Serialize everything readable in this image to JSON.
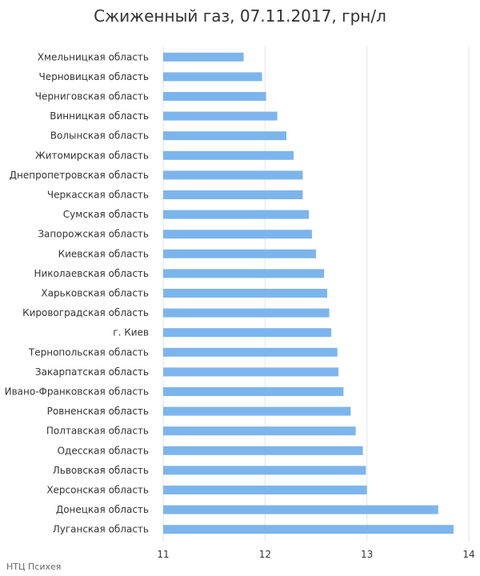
{
  "chart_data": {
    "type": "bar",
    "orientation": "horizontal",
    "title": "Сжиженный газ, 07.11.2017, грн/л",
    "xlabel": "",
    "ylabel": "",
    "xlim": [
      11,
      14
    ],
    "ticks": [
      "11",
      "12",
      "13",
      "14"
    ],
    "grid": true,
    "bar_color": "#7cb5ec",
    "categories": [
      "Хмельницкая область",
      "Черновицкая область",
      "Черниговская область",
      "Винницкая область",
      "Волынская область",
      "Житомирская область",
      "Днепропетровская область",
      "Черкасская область",
      "Сумская область",
      "Запорожская область",
      "Киевская область",
      "Николаевская область",
      "Харьковская область",
      "Кировоградская область",
      "г. Киев",
      "Тернопольская область",
      "Закарпатская область",
      "Ивано-Франковская область",
      "Ровненская область",
      "Полтавская область",
      "Одесская область",
      "Львовская область",
      "Херсонская область",
      "Донецкая область",
      "Луганская область"
    ],
    "values": [
      11.79,
      11.97,
      12.01,
      12.12,
      12.21,
      12.28,
      12.37,
      12.37,
      12.43,
      12.46,
      12.5,
      12.58,
      12.61,
      12.63,
      12.65,
      12.71,
      12.72,
      12.77,
      12.84,
      12.89,
      12.96,
      12.99,
      13.0,
      13.7,
      13.85
    ]
  },
  "credit": "НТЦ Психея"
}
